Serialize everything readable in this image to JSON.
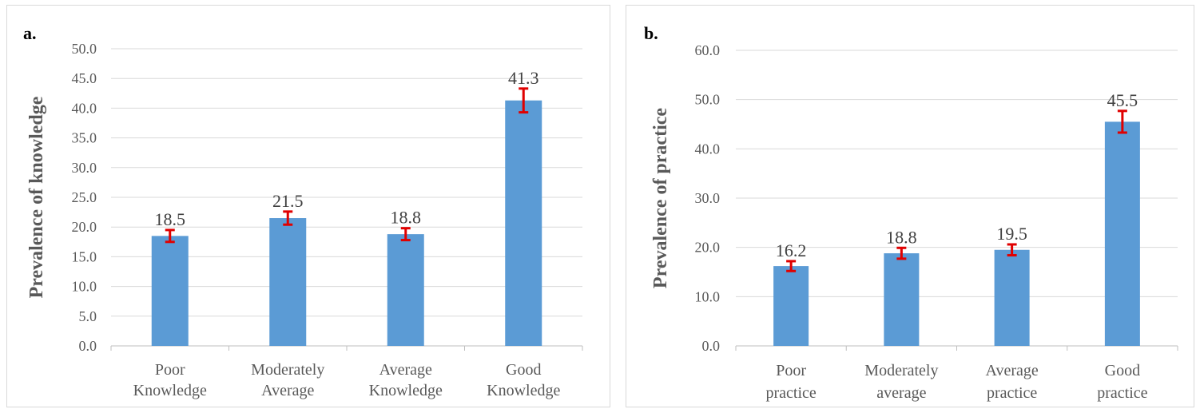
{
  "chart_data": [
    {
      "panel_label": "a.",
      "type": "bar",
      "categories": [
        [
          "Poor",
          "Knowledge"
        ],
        [
          "Moderately",
          "Average"
        ],
        [
          "Average",
          "Knowledge"
        ],
        [
          "Good",
          "Knowledge"
        ]
      ],
      "values": [
        18.5,
        21.5,
        18.8,
        41.3
      ],
      "data_labels": [
        "18.5",
        "21.5",
        "18.8",
        "41.3"
      ],
      "error_bars": [
        1.0,
        1.1,
        1.0,
        2.0
      ],
      "ylabel": "Prevalence of  knowledge",
      "xlabel": "",
      "ylim": [
        0,
        50
      ],
      "yticks": [
        "0.0",
        "5.0",
        "10.0",
        "15.0",
        "20.0",
        "25.0",
        "30.0",
        "35.0",
        "40.0",
        "45.0",
        "50.0"
      ],
      "grid": true,
      "bar_color": "#5b9bd5",
      "error_color": "#e00000"
    },
    {
      "panel_label": "b.",
      "type": "bar",
      "categories": [
        [
          "Poor",
          "practice"
        ],
        [
          "Moderately",
          "average"
        ],
        [
          "Average",
          "practice"
        ],
        [
          "Good",
          "practice"
        ]
      ],
      "values": [
        16.2,
        18.8,
        19.5,
        45.5
      ],
      "data_labels": [
        "16.2",
        "18.8",
        "19.5",
        "45.5"
      ],
      "error_bars": [
        1.0,
        1.1,
        1.1,
        2.2
      ],
      "ylabel": "Prevalence of practice",
      "xlabel": "",
      "ylim": [
        0,
        60
      ],
      "yticks": [
        "0.0",
        "10.0",
        "20.0",
        "30.0",
        "40.0",
        "50.0",
        "60.0"
      ],
      "grid": true,
      "bar_color": "#5b9bd5",
      "error_color": "#e00000"
    }
  ]
}
